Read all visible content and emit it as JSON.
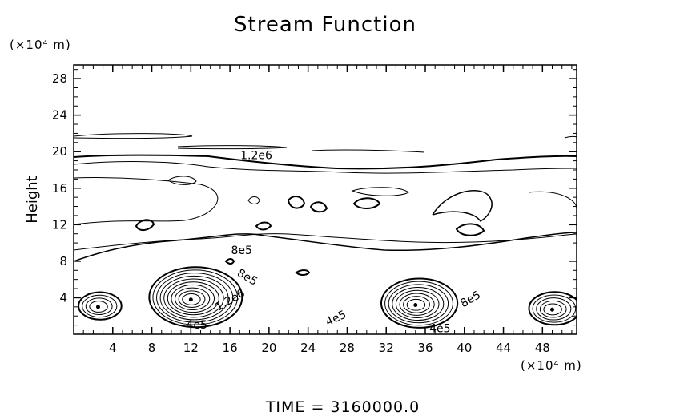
{
  "chart_data": {
    "type": "contour",
    "title": "Stream Function",
    "xlabel": "",
    "ylabel": "Height",
    "x_units": "(×10⁴ m)",
    "y_units": "(×10⁴ m)",
    "xlim": [
      0,
      51.5
    ],
    "ylim": [
      0,
      29.5
    ],
    "xticks": [
      4,
      8,
      12,
      16,
      20,
      24,
      28,
      32,
      36,
      40,
      44,
      48
    ],
    "yticks": [
      4,
      8,
      12,
      16,
      20,
      24,
      28
    ],
    "grid": false,
    "footer_text": "TIME  =  3160000.0",
    "contour_labels": [
      {
        "text": "1.2e6",
        "x": 18.7,
        "y": 19.2,
        "angle": 0
      },
      {
        "text": "8e5",
        "x": 17.2,
        "y": 8.8,
        "angle": 0
      },
      {
        "text": "8e5",
        "x": 17.6,
        "y": 5.9,
        "angle": 30
      },
      {
        "text": "1.2e6",
        "x": 16.2,
        "y": 3.4,
        "angle": -30
      },
      {
        "text": "4e5",
        "x": 12.6,
        "y": 0.6,
        "angle": 0
      },
      {
        "text": "4e5",
        "x": 27.0,
        "y": 1.4,
        "angle": -25
      },
      {
        "text": "8e5",
        "x": 40.8,
        "y": 3.5,
        "angle": -30
      },
      {
        "text": "4e5",
        "x": 37.5,
        "y": 0.2,
        "angle": 0
      }
    ],
    "centers": [
      {
        "x": 12.0,
        "y": 3.8,
        "rings": 10
      },
      {
        "x": 35.0,
        "y": 3.2,
        "rings": 8
      },
      {
        "x": 49.0,
        "y": 2.7,
        "rings": 5
      },
      {
        "x": 2.5,
        "y": 3.0,
        "rings": 4
      }
    ]
  }
}
